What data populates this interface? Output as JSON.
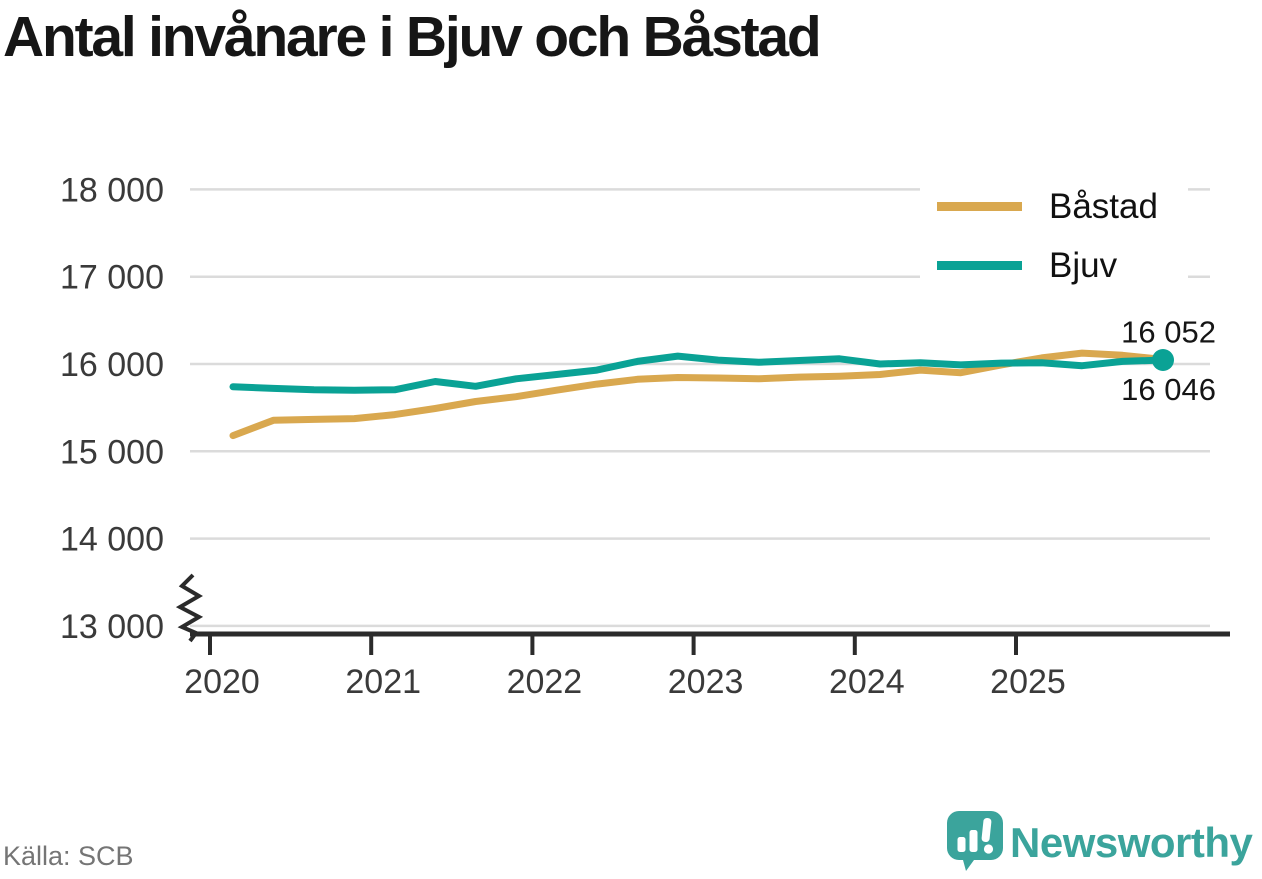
{
  "title": "Antal invånare i Bjuv och Båstad",
  "source": "Källa: SCB",
  "branding": {
    "logo_text": "Newsworthy",
    "logo_color": "#3BA49C",
    "logo_icon": "speech-bubble-bar-chart-exclamation"
  },
  "legend": [
    {
      "label": "Båstad",
      "color": "#D9A84F"
    },
    {
      "label": "Bjuv",
      "color": "#0AA295"
    }
  ],
  "end_labels": [
    {
      "series": "Båstad",
      "label": "16 052"
    },
    {
      "series": "Bjuv",
      "label": "16 046"
    }
  ],
  "colors": {
    "grid": "#DBDBDB",
    "axis": "#2B2B2B",
    "tick_text": "#3A3A3A",
    "title_text": "#161616",
    "value_label_text": "#151515"
  },
  "chart_data": {
    "type": "line",
    "title": "Antal invånare i Bjuv och Båstad",
    "xlabel": "",
    "ylabel": "",
    "grid": "horizontal",
    "legend_position": "top-right",
    "categories": [
      "2020 kv1",
      "2020 kv2",
      "2020 kv3",
      "2020 kv4",
      "2021 kv1",
      "2021 kv2",
      "2021 kv3",
      "2021 kv4",
      "2022 kv1",
      "2022 kv2",
      "2022 kv3",
      "2022 kv4",
      "2023 kv1",
      "2023 kv2",
      "2023 kv3",
      "2023 kv4",
      "2024 kv1",
      "2024 kv2",
      "2024 kv3",
      "2024 kv4",
      "2025 kv1",
      "2025 kv2",
      "2025 kv3",
      "2025 kv4"
    ],
    "series": [
      {
        "name": "Båstad",
        "color": "#D9A84F",
        "values": [
          15180,
          15355,
          15365,
          15375,
          15420,
          15490,
          15570,
          15625,
          15700,
          15770,
          15825,
          15845,
          15840,
          15830,
          15850,
          15860,
          15880,
          15930,
          15900,
          15990,
          16070,
          16125,
          16100,
          16052
        ],
        "final_value": 16052,
        "marker_end": false
      },
      {
        "name": "Bjuv",
        "color": "#0AA295",
        "values": [
          15740,
          15720,
          15705,
          15700,
          15705,
          15800,
          15745,
          15830,
          15880,
          15930,
          16030,
          16090,
          16045,
          16020,
          16040,
          16060,
          16000,
          16015,
          15990,
          16010,
          16015,
          15980,
          16030,
          16046
        ],
        "final_value": 16046,
        "marker_end": true
      }
    ],
    "y_axis": {
      "axis_break": true,
      "range_drawn": [
        13000,
        18000
      ],
      "ticks": [
        {
          "value": 18000,
          "label": "18 000"
        },
        {
          "value": 17000,
          "label": "17 000"
        },
        {
          "value": 16000,
          "label": "16 000"
        },
        {
          "value": 15000,
          "label": "15 000"
        },
        {
          "value": 14000,
          "label": "14 000"
        },
        {
          "value": 13000,
          "label": "13 000"
        }
      ]
    },
    "x_axis": {
      "ticks": [
        {
          "value": 2020,
          "label": "2020"
        },
        {
          "value": 2021,
          "label": "2021"
        },
        {
          "value": 2022,
          "label": "2022"
        },
        {
          "value": 2023,
          "label": "2023"
        },
        {
          "value": 2024,
          "label": "2024"
        },
        {
          "value": 2025,
          "label": "2025"
        }
      ]
    }
  }
}
